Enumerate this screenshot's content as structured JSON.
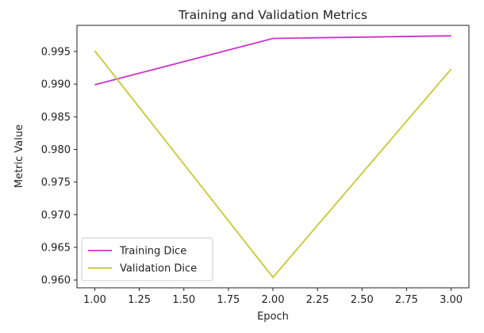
{
  "chart_data": {
    "type": "line",
    "title": "Training and Validation Metrics",
    "xlabel": "Epoch",
    "ylabel": "Metric Value",
    "x": [
      1,
      2,
      3
    ],
    "series": [
      {
        "name": "Training Dice",
        "color": "#cc33cc",
        "values": [
          0.9899,
          0.997,
          0.9974
        ]
      },
      {
        "name": "Validation Dice",
        "color": "#c8c832",
        "values": [
          0.9951,
          0.9604,
          0.9923
        ]
      }
    ],
    "xlim": [
      0.9,
      3.1
    ],
    "ylim": [
      0.9588,
      0.999
    ],
    "xticks": [
      1.0,
      1.25,
      1.5,
      1.75,
      2.0,
      2.25,
      2.5,
      2.75,
      3.0
    ],
    "xtick_labels": [
      "1.00",
      "1.25",
      "1.50",
      "1.75",
      "2.00",
      "2.25",
      "2.50",
      "2.75",
      "3.00"
    ],
    "yticks": [
      0.96,
      0.965,
      0.97,
      0.975,
      0.98,
      0.985,
      0.99,
      0.995
    ],
    "ytick_labels": [
      "0.960",
      "0.965",
      "0.970",
      "0.975",
      "0.980",
      "0.985",
      "0.990",
      "0.995"
    ],
    "grid": false,
    "legend_position": "lower-left"
  }
}
